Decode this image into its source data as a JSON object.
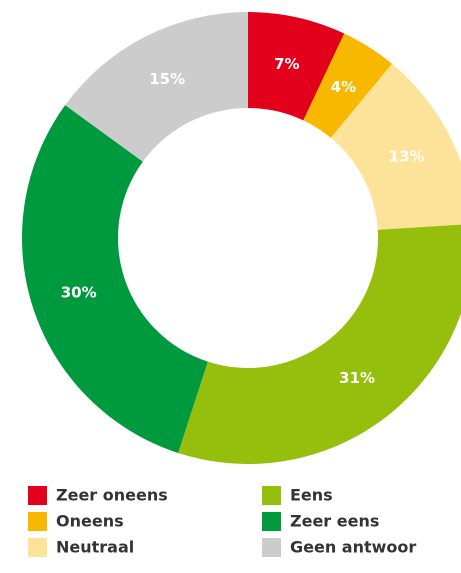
{
  "chart_data": {
    "type": "donut",
    "categories": [
      "Zeer oneens",
      "Oneens",
      "Neutraal",
      "Eens",
      "Zeer eens",
      "Geen antwoor"
    ],
    "values": [
      7,
      4,
      13,
      31,
      30,
      15
    ],
    "value_labels": [
      "7%",
      "4%",
      "13%",
      "31%",
      "30%",
      "15%"
    ],
    "colors": [
      "#e2001a",
      "#f9b800",
      "#fde39a",
      "#96be0d",
      "#009a3e",
      "#cccccc"
    ]
  }
}
